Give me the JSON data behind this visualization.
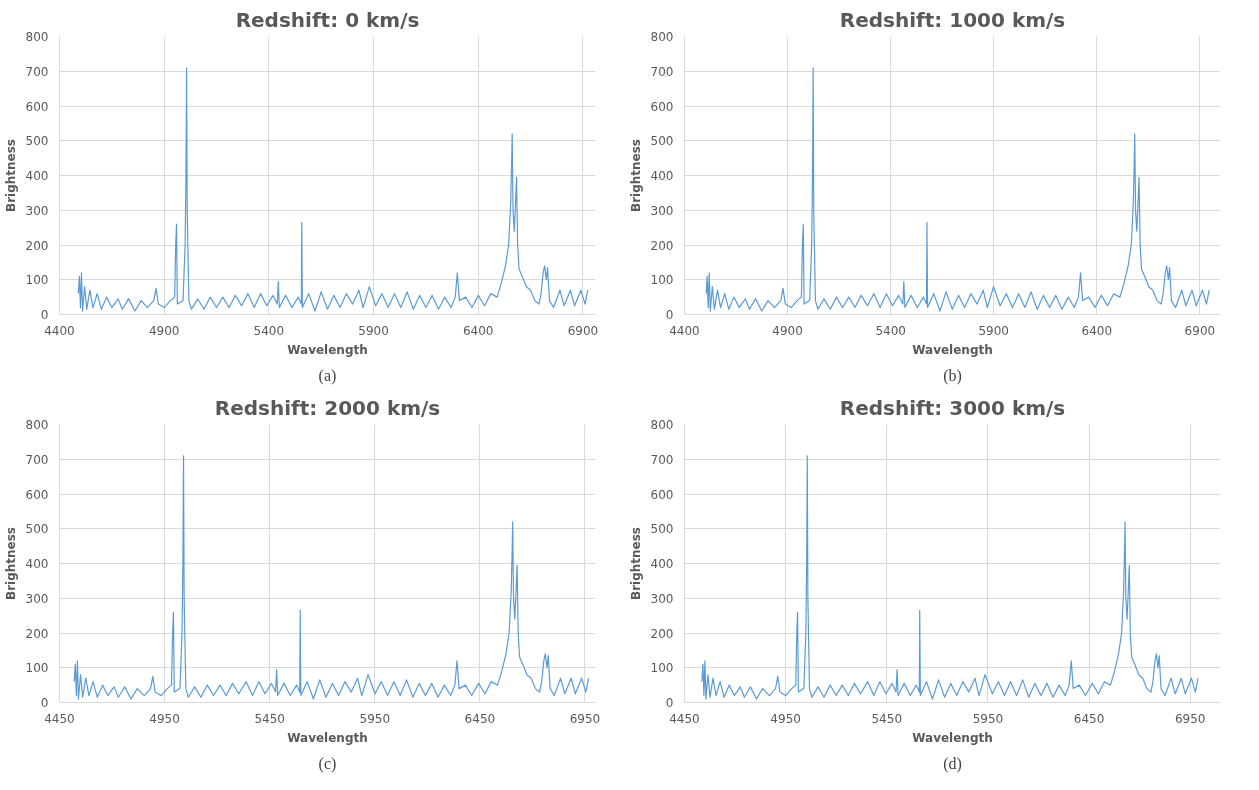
{
  "chart_data": [
    {
      "type": "line",
      "title": "Redshift: 0 km/s",
      "xlabel": "Wavelength",
      "ylabel": "Brightness",
      "annotations": [
        "(a)"
      ],
      "color": "#5b9bd5",
      "grid": true,
      "xlim": [
        4400,
        6960
      ],
      "xticks": [
        4400,
        4900,
        5400,
        5900,
        6400,
        6900
      ],
      "ylim": [
        0,
        800
      ],
      "yticks": [
        0,
        100,
        200,
        300,
        400,
        500,
        600,
        700,
        800
      ],
      "x": [
        4490,
        4495,
        4500,
        4505,
        4510,
        4520,
        4530,
        4545,
        4560,
        4580,
        4600,
        4625,
        4650,
        4680,
        4700,
        4730,
        4760,
        4790,
        4820,
        4850,
        4861,
        4872,
        4900,
        4930,
        4950,
        4955,
        4959,
        4963,
        4990,
        5000,
        5004,
        5007,
        5010,
        5013,
        5018,
        5030,
        5060,
        5090,
        5120,
        5150,
        5180,
        5210,
        5240,
        5270,
        5300,
        5330,
        5360,
        5390,
        5420,
        5440,
        5445,
        5450,
        5480,
        5510,
        5540,
        5555,
        5557,
        5560,
        5590,
        5620,
        5650,
        5680,
        5710,
        5740,
        5770,
        5800,
        5830,
        5850,
        5880,
        5910,
        5940,
        5970,
        6000,
        6030,
        6060,
        6090,
        6120,
        6150,
        6180,
        6210,
        6240,
        6270,
        6290,
        6300,
        6310,
        6340,
        6370,
        6400,
        6430,
        6460,
        6490,
        6510,
        6530,
        6545,
        6555,
        6560,
        6562,
        6566,
        6572,
        6578,
        6583,
        6588,
        6595,
        6610,
        6630,
        6650,
        6670,
        6690,
        6700,
        6710,
        6717,
        6725,
        6731,
        6740,
        6760,
        6790,
        6810,
        6840,
        6860,
        6890,
        6910,
        6923
      ],
      "values": [
        60,
        110,
        20,
        120,
        10,
        80,
        15,
        70,
        20,
        60,
        15,
        50,
        20,
        45,
        15,
        45,
        10,
        40,
        20,
        40,
        75,
        30,
        20,
        40,
        50,
        200,
        260,
        30,
        40,
        200,
        400,
        710,
        300,
        200,
        40,
        15,
        45,
        15,
        50,
        20,
        50,
        20,
        55,
        25,
        60,
        20,
        60,
        25,
        55,
        30,
        95,
        20,
        55,
        20,
        50,
        30,
        265,
        20,
        60,
        10,
        65,
        15,
        55,
        20,
        60,
        30,
        70,
        20,
        80,
        25,
        60,
        20,
        60,
        20,
        65,
        15,
        55,
        20,
        55,
        15,
        50,
        20,
        50,
        120,
        40,
        50,
        20,
        55,
        25,
        60,
        50,
        90,
        140,
        200,
        320,
        450,
        520,
        300,
        240,
        320,
        395,
        200,
        130,
        110,
        80,
        70,
        40,
        30,
        60,
        120,
        140,
        100,
        135,
        40,
        20,
        70,
        25,
        70,
        25,
        70,
        30,
        70
      ]
    },
    {
      "type": "line",
      "title": "Redshift: 1000 km/s",
      "xlabel": "Wavelength",
      "ylabel": "Brightness",
      "annotations": [
        "(b)"
      ],
      "color": "#5b9bd5",
      "grid": true,
      "xlim": [
        4400,
        7000
      ],
      "xticks": [
        4400,
        4900,
        5400,
        5900,
        6400,
        6900
      ],
      "ylim": [
        0,
        800
      ],
      "yticks": [
        0,
        100,
        200,
        300,
        400,
        500,
        600,
        700,
        800
      ],
      "x": [
        4505,
        4510,
        4515,
        4520,
        4525,
        4535,
        4545,
        4560,
        4575,
        4595,
        4615,
        4640,
        4665,
        4695,
        4715,
        4745,
        4775,
        4805,
        4837,
        4867,
        4878,
        4889,
        4917,
        4947,
        4967,
        4972,
        4976,
        4980,
        5007,
        5017,
        5021,
        5024,
        5027,
        5030,
        5035,
        5047,
        5077,
        5107,
        5137,
        5167,
        5197,
        5227,
        5257,
        5287,
        5319,
        5349,
        5379,
        5409,
        5439,
        5459,
        5464,
        5469,
        5499,
        5529,
        5559,
        5574,
        5576,
        5579,
        5609,
        5639,
        5669,
        5699,
        5729,
        5759,
        5789,
        5819,
        5849,
        5869,
        5899,
        5931,
        5961,
        5991,
        6021,
        6051,
        6081,
        6111,
        6141,
        6171,
        6201,
        6231,
        6261,
        6291,
        6311,
        6321,
        6331,
        6361,
        6391,
        6422,
        6452,
        6482,
        6512,
        6532,
        6552,
        6567,
        6577,
        6582,
        6584,
        6588,
        6594,
        6600,
        6605,
        6610,
        6617,
        6632,
        6652,
        6672,
        6692,
        6712,
        6722,
        6732,
        6739,
        6747,
        6753,
        6762,
        6782,
        6812,
        6832,
        6862,
        6882,
        6912,
        6932,
        6945
      ],
      "values": [
        60,
        110,
        20,
        120,
        10,
        80,
        15,
        70,
        20,
        60,
        15,
        50,
        20,
        45,
        15,
        45,
        10,
        40,
        20,
        40,
        75,
        30,
        20,
        40,
        50,
        200,
        260,
        30,
        40,
        200,
        400,
        710,
        300,
        200,
        40,
        15,
        45,
        15,
        50,
        20,
        50,
        20,
        55,
        25,
        60,
        20,
        60,
        25,
        55,
        30,
        95,
        20,
        55,
        20,
        50,
        30,
        265,
        20,
        60,
        10,
        65,
        15,
        55,
        20,
        60,
        30,
        70,
        20,
        80,
        25,
        60,
        20,
        60,
        20,
        65,
        15,
        55,
        20,
        55,
        15,
        50,
        20,
        50,
        120,
        40,
        50,
        20,
        55,
        25,
        60,
        50,
        90,
        140,
        200,
        320,
        450,
        520,
        300,
        240,
        320,
        395,
        200,
        130,
        110,
        80,
        70,
        40,
        30,
        60,
        120,
        140,
        100,
        135,
        40,
        20,
        70,
        25,
        70,
        25,
        70,
        30,
        70
      ]
    },
    {
      "type": "line",
      "title": "Redshift: 2000 km/s",
      "xlabel": "Wavelength",
      "ylabel": "Brightness",
      "annotations": [
        "(c)"
      ],
      "color": "#5b9bd5",
      "grid": true,
      "xlim": [
        4450,
        7000
      ],
      "xticks": [
        4450,
        4950,
        5450,
        5950,
        6450,
        6950
      ],
      "ylim": [
        0,
        800
      ],
      "yticks": [
        0,
        100,
        200,
        300,
        400,
        500,
        600,
        700,
        800
      ],
      "x": [
        4520,
        4525,
        4530,
        4535,
        4540,
        4550,
        4560,
        4575,
        4590,
        4610,
        4630,
        4655,
        4680,
        4710,
        4730,
        4760,
        4790,
        4820,
        4853,
        4883,
        4894,
        4905,
        4933,
        4963,
        4983,
        4988,
        4992,
        4996,
        5023,
        5033,
        5037,
        5040,
        5043,
        5046,
        5051,
        5063,
        5093,
        5123,
        5153,
        5183,
        5213,
        5243,
        5273,
        5303,
        5338,
        5368,
        5398,
        5428,
        5458,
        5478,
        5483,
        5488,
        5518,
        5548,
        5578,
        5593,
        5595,
        5598,
        5628,
        5658,
        5688,
        5718,
        5748,
        5778,
        5808,
        5838,
        5868,
        5888,
        5918,
        5951,
        5981,
        6011,
        6041,
        6071,
        6101,
        6131,
        6161,
        6191,
        6221,
        6251,
        6281,
        6311,
        6331,
        6341,
        6351,
        6381,
        6411,
        6444,
        6474,
        6504,
        6534,
        6554,
        6574,
        6589,
        6599,
        6604,
        6606,
        6610,
        6616,
        6622,
        6627,
        6632,
        6639,
        6654,
        6674,
        6694,
        6714,
        6734,
        6744,
        6754,
        6761,
        6769,
        6775,
        6784,
        6804,
        6834,
        6854,
        6884,
        6904,
        6934,
        6954,
        6967
      ],
      "values": [
        60,
        110,
        20,
        120,
        10,
        80,
        15,
        70,
        20,
        60,
        15,
        50,
        20,
        45,
        15,
        45,
        10,
        40,
        20,
        40,
        75,
        30,
        20,
        40,
        50,
        200,
        260,
        30,
        40,
        200,
        400,
        710,
        300,
        200,
        40,
        15,
        45,
        15,
        50,
        20,
        50,
        20,
        55,
        25,
        60,
        20,
        60,
        25,
        55,
        30,
        95,
        20,
        55,
        20,
        50,
        30,
        265,
        20,
        60,
        10,
        65,
        15,
        55,
        20,
        60,
        30,
        70,
        20,
        80,
        25,
        60,
        20,
        60,
        20,
        65,
        15,
        55,
        20,
        55,
        15,
        50,
        20,
        50,
        120,
        40,
        50,
        20,
        55,
        25,
        60,
        50,
        90,
        140,
        200,
        320,
        450,
        520,
        300,
        240,
        320,
        395,
        200,
        130,
        110,
        80,
        70,
        40,
        30,
        60,
        120,
        140,
        100,
        135,
        40,
        20,
        70,
        25,
        70,
        25,
        70,
        30,
        70
      ]
    },
    {
      "type": "line",
      "title": "Redshift: 3000 km/s",
      "xlabel": "Wavelength",
      "ylabel": "Brightness",
      "annotations": [
        "(d)"
      ],
      "color": "#5b9bd5",
      "grid": true,
      "xlim": [
        4450,
        7100
      ],
      "xticks": [
        4450,
        4950,
        5450,
        5950,
        6450,
        6950
      ],
      "ylim": [
        0,
        800
      ],
      "yticks": [
        0,
        100,
        200,
        300,
        400,
        500,
        600,
        700,
        800
      ],
      "x": [
        4536,
        4541,
        4546,
        4551,
        4556,
        4566,
        4576,
        4591,
        4606,
        4626,
        4646,
        4671,
        4696,
        4726,
        4746,
        4776,
        4806,
        4836,
        4870,
        4900,
        4911,
        4922,
        4950,
        4980,
        5000,
        5005,
        5009,
        5013,
        5040,
        5050,
        5054,
        5057,
        5060,
        5063,
        5068,
        5080,
        5110,
        5140,
        5170,
        5200,
        5230,
        5260,
        5290,
        5320,
        5356,
        5386,
        5416,
        5446,
        5476,
        5496,
        5501,
        5506,
        5536,
        5566,
        5596,
        5611,
        5613,
        5616,
        5646,
        5676,
        5706,
        5736,
        5766,
        5796,
        5826,
        5856,
        5886,
        5906,
        5936,
        5972,
        6002,
        6032,
        6062,
        6092,
        6122,
        6152,
        6182,
        6212,
        6242,
        6272,
        6302,
        6332,
        6352,
        6362,
        6372,
        6402,
        6432,
        6466,
        6496,
        6526,
        6556,
        6576,
        6596,
        6611,
        6621,
        6626,
        6628,
        6632,
        6638,
        6644,
        6649,
        6654,
        6661,
        6676,
        6696,
        6716,
        6736,
        6756,
        6766,
        6776,
        6783,
        6791,
        6797,
        6806,
        6826,
        6856,
        6876,
        6906,
        6926,
        6956,
        6976,
        6989
      ],
      "values": [
        60,
        110,
        20,
        120,
        10,
        80,
        15,
        70,
        20,
        60,
        15,
        50,
        20,
        45,
        15,
        45,
        10,
        40,
        20,
        40,
        75,
        30,
        20,
        40,
        50,
        200,
        260,
        30,
        40,
        200,
        400,
        710,
        300,
        200,
        40,
        15,
        45,
        15,
        50,
        20,
        50,
        20,
        55,
        25,
        60,
        20,
        60,
        25,
        55,
        30,
        95,
        20,
        55,
        20,
        50,
        30,
        265,
        20,
        60,
        10,
        65,
        15,
        55,
        20,
        60,
        30,
        70,
        20,
        80,
        25,
        60,
        20,
        60,
        20,
        65,
        15,
        55,
        20,
        55,
        15,
        50,
        20,
        50,
        120,
        40,
        50,
        20,
        55,
        25,
        60,
        50,
        90,
        140,
        200,
        320,
        450,
        520,
        300,
        240,
        320,
        395,
        200,
        130,
        110,
        80,
        70,
        40,
        30,
        60,
        120,
        140,
        100,
        135,
        40,
        20,
        70,
        25,
        70,
        25,
        70,
        30,
        70
      ]
    }
  ]
}
